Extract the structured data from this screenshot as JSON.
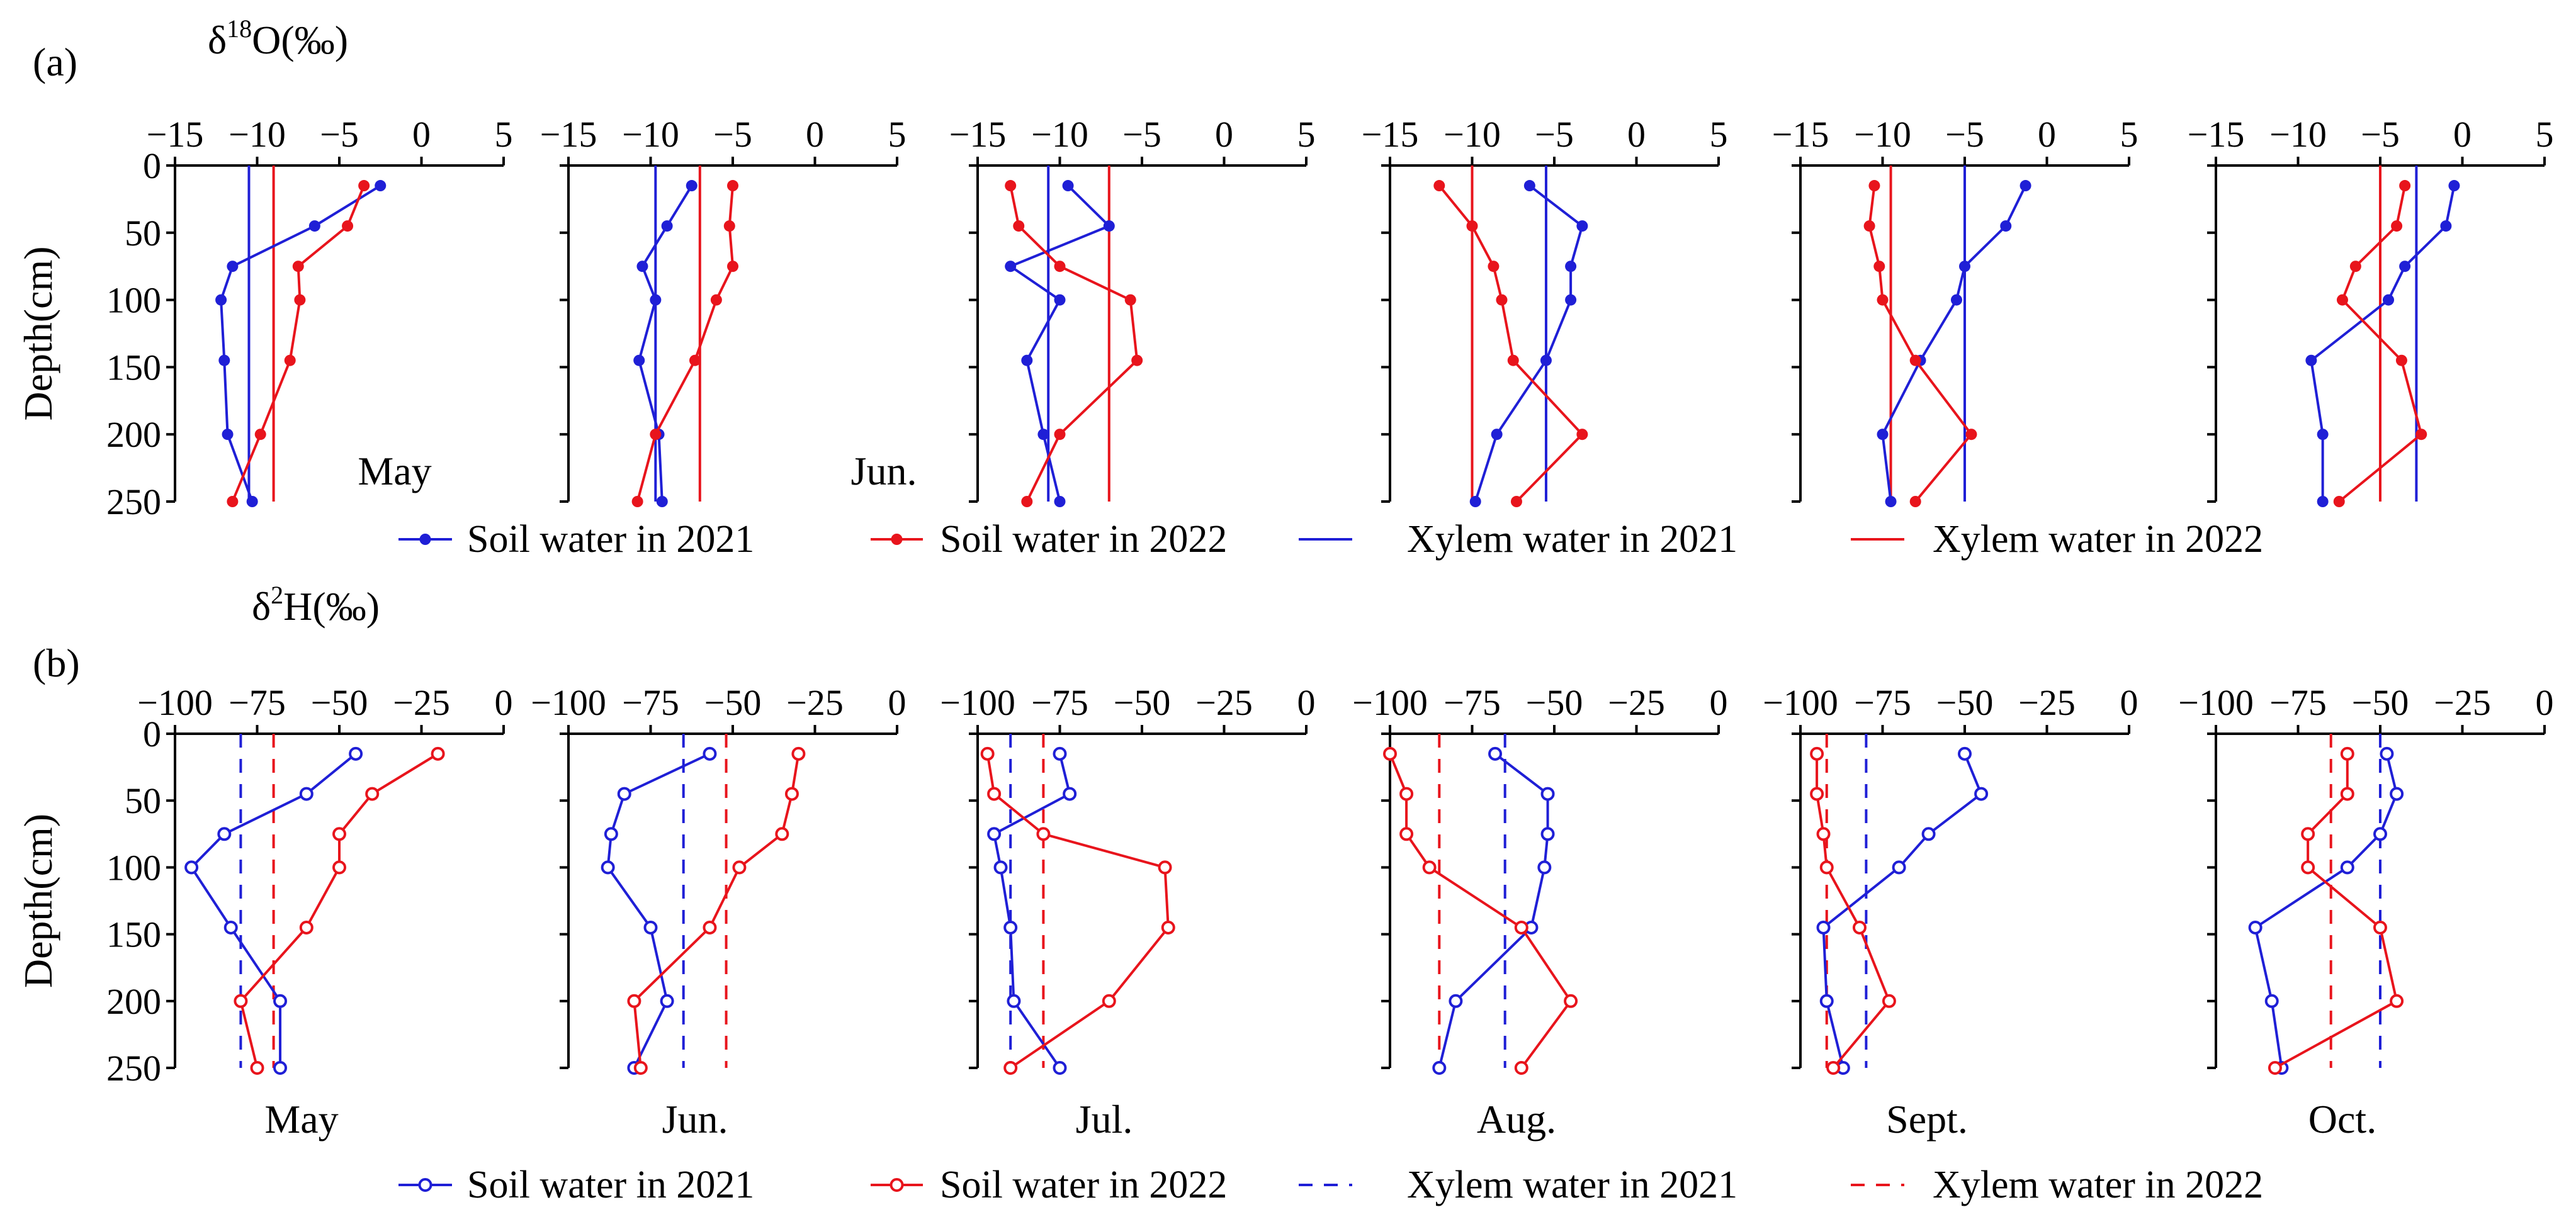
{
  "colors": {
    "blue": "#1f1fd6",
    "red": "#e8141c",
    "axis": "#000000"
  },
  "chart_data": [
    {
      "panel_label": "(a)",
      "type": "line",
      "variable_label": "δ18O(‰)",
      "variable_label_base": "δ",
      "variable_label_sup": "18",
      "variable_label_tail": "O(‰)",
      "ylabel": "Depth(cm)",
      "xlim": [
        -15,
        5
      ],
      "xticks": [
        "−15",
        "−10",
        "−5",
        "0",
        "5"
      ],
      "ylim": [
        0,
        250
      ],
      "yticks": [
        "0",
        "50",
        "100",
        "150",
        "200",
        "250"
      ],
      "depths": [
        15,
        45,
        75,
        100,
        145,
        200,
        250
      ],
      "marker": "filled",
      "xylem_style": "solid",
      "month_labels": [
        {
          "panel": 0,
          "text": "May"
        },
        {
          "panel": 1,
          "text": "Jun."
        }
      ],
      "legend": [
        {
          "label": "Soil water in 2021",
          "kind": "soil",
          "color": "blue"
        },
        {
          "label": "Soil water in 2022",
          "kind": "soil",
          "color": "red"
        },
        {
          "label": "Xylem water in 2021",
          "kind": "xylem",
          "color": "blue"
        },
        {
          "label": "Xylem water in 2022",
          "kind": "xylem",
          "color": "red"
        }
      ],
      "panels": [
        {
          "month": "May",
          "soil_2021": [
            -2.5,
            -6.5,
            -11.5,
            -12.2,
            -12.0,
            -11.8,
            -10.3
          ],
          "soil_2022": [
            -3.5,
            -4.5,
            -7.5,
            -7.4,
            -8.0,
            -9.8,
            -11.5
          ],
          "xylem_2021": -10.5,
          "xylem_2022": -9.0
        },
        {
          "month": "Jun.",
          "soil_2021": [
            -7.5,
            -9.0,
            -10.5,
            -9.7,
            -10.7,
            -9.5,
            -9.3
          ],
          "soil_2022": [
            -5.0,
            -5.2,
            -5.0,
            -6.0,
            -7.3,
            -9.7,
            -10.8
          ],
          "xylem_2021": -9.7,
          "xylem_2022": -7.0
        },
        {
          "month": "Jul.",
          "soil_2021": [
            -9.5,
            -7.0,
            -13.0,
            -10.0,
            -12.0,
            -11.0,
            -10.0
          ],
          "soil_2022": [
            -13.0,
            -12.5,
            -10.0,
            -5.7,
            -5.3,
            -10.0,
            -12.0
          ],
          "xylem_2021": -10.7,
          "xylem_2022": -7.0
        },
        {
          "month": "Aug.",
          "soil_2021": [
            -6.5,
            -3.3,
            -4.0,
            -4.0,
            -5.5,
            -8.5,
            -9.8
          ],
          "soil_2022": [
            -12.0,
            -10.0,
            -8.7,
            -8.2,
            -7.5,
            -3.3,
            -7.3
          ],
          "xylem_2021": -5.5,
          "xylem_2022": -10.0
        },
        {
          "month": "Sept.",
          "soil_2021": [
            -1.3,
            -2.5,
            -5.0,
            -5.5,
            -7.7,
            -10.0,
            -9.5
          ],
          "soil_2022": [
            -10.5,
            -10.8,
            -10.2,
            -10.0,
            -8.0,
            -4.6,
            -8.0
          ],
          "xylem_2021": -5.0,
          "xylem_2022": -9.5
        },
        {
          "month": "Oct.",
          "soil_2021": [
            -0.5,
            -1.0,
            -3.5,
            -4.5,
            -9.2,
            -8.5,
            -8.5
          ],
          "soil_2022": [
            -3.5,
            -4.0,
            -6.5,
            -7.3,
            -3.7,
            -2.5,
            -7.5
          ],
          "xylem_2021": -2.8,
          "xylem_2022": -5.0
        }
      ]
    },
    {
      "panel_label": "(b)",
      "type": "line",
      "variable_label": "δ2H(‰)",
      "variable_label_base": "δ",
      "variable_label_sup": "2",
      "variable_label_tail": "H(‰)",
      "ylabel": "Depth(cm)",
      "xlim": [
        -100,
        0
      ],
      "xticks": [
        "−100",
        "−75",
        "−50",
        "−25",
        "0"
      ],
      "ylim": [
        0,
        250
      ],
      "yticks": [
        "0",
        "50",
        "100",
        "150",
        "200",
        "250"
      ],
      "depths": [
        15,
        45,
        75,
        100,
        145,
        200,
        250
      ],
      "marker": "open",
      "xylem_style": "dashed",
      "month_labels": [
        {
          "panel": 0,
          "text": "May"
        },
        {
          "panel": 1,
          "text": "Jun."
        },
        {
          "panel": 2,
          "text": "Jul."
        },
        {
          "panel": 3,
          "text": "Aug."
        },
        {
          "panel": 4,
          "text": "Sept."
        },
        {
          "panel": 5,
          "text": "Oct."
        }
      ],
      "legend": [
        {
          "label": "Soil water in 2021",
          "kind": "soil",
          "color": "blue"
        },
        {
          "label": "Soil water in 2022",
          "kind": "soil",
          "color": "red"
        },
        {
          "label": "Xylem water in 2021",
          "kind": "xylem",
          "color": "blue"
        },
        {
          "label": "Xylem water in 2022",
          "kind": "xylem",
          "color": "red"
        }
      ],
      "panels": [
        {
          "month": "May",
          "soil_2021": [
            -45,
            -60,
            -85,
            -95,
            -83,
            -68,
            -68
          ],
          "soil_2022": [
            -20,
            -40,
            -50,
            -50,
            -60,
            -80,
            -75
          ],
          "xylem_2021": -80,
          "xylem_2022": -70
        },
        {
          "month": "Jun.",
          "soil_2021": [
            -57,
            -83,
            -87,
            -88,
            -75,
            -70,
            -80
          ],
          "soil_2022": [
            -30,
            -32,
            -35,
            -48,
            -57,
            -80,
            -78
          ],
          "xylem_2021": -65,
          "xylem_2022": -52
        },
        {
          "month": "Jul.",
          "soil_2021": [
            -75,
            -72,
            -95,
            -93,
            -90,
            -89,
            -75
          ],
          "soil_2022": [
            -97,
            -95,
            -80,
            -43,
            -42,
            -60,
            -90
          ],
          "xylem_2021": -90,
          "xylem_2022": -80
        },
        {
          "month": "Aug.",
          "soil_2021": [
            -68,
            -52,
            -52,
            -53,
            -57,
            -80,
            -85
          ],
          "soil_2022": [
            -100,
            -95,
            -95,
            -88,
            -60,
            -45,
            -60
          ],
          "xylem_2021": -65,
          "xylem_2022": -85
        },
        {
          "month": "Sept.",
          "soil_2021": [
            -50,
            -45,
            -61,
            -70,
            -93,
            -92,
            -87
          ],
          "soil_2022": [
            -95,
            -95,
            -93,
            -92,
            -82,
            -73,
            -90
          ],
          "xylem_2021": -80,
          "xylem_2022": -92
        },
        {
          "month": "Oct.",
          "soil_2021": [
            -48,
            -45,
            -50,
            -60,
            -88,
            -83,
            -80
          ],
          "soil_2022": [
            -60,
            -60,
            -72,
            -72,
            -50,
            -45,
            -82
          ],
          "xylem_2021": -50,
          "xylem_2022": -65
        }
      ]
    }
  ]
}
